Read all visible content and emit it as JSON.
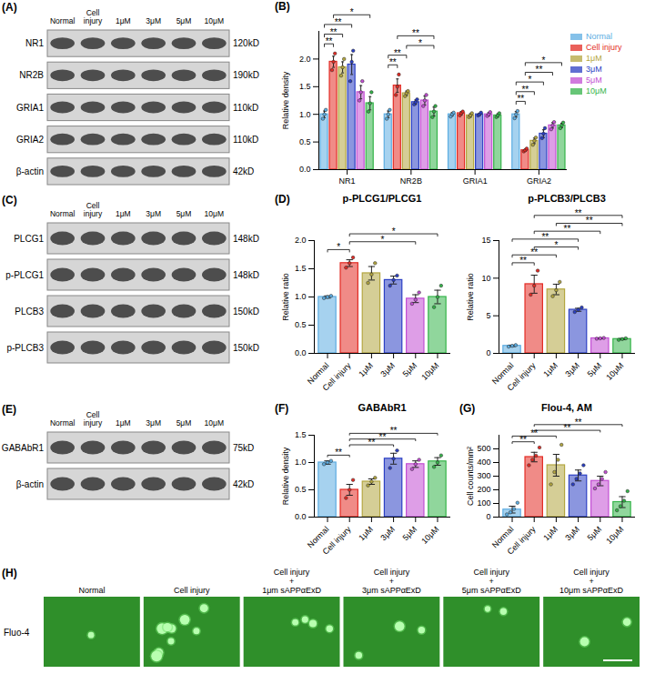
{
  "blots": [
    {
      "panel": "(A)",
      "lanes": [
        "Normal",
        "Cell injury",
        "1μM",
        "3μM",
        "5μM",
        "10μM"
      ],
      "rows": [
        {
          "name": "NR1",
          "size": "120kD"
        },
        {
          "name": "NR2B",
          "size": "190kD"
        },
        {
          "name": "GRIA1",
          "size": "110kD"
        },
        {
          "name": "GRIA2",
          "size": "110kD"
        },
        {
          "name": "β-actin",
          "size": "42kD"
        }
      ]
    },
    {
      "panel": "(C)",
      "lanes": [
        "Normal",
        "Cell injury",
        "1μM",
        "3μM",
        "5μM",
        "10μM"
      ],
      "rows": [
        {
          "name": "PLCG1",
          "size": "148kD"
        },
        {
          "name": "p-PLCG1",
          "size": "148kD"
        },
        {
          "name": "PLCB3",
          "size": "150kD"
        },
        {
          "name": "p-PLCB3",
          "size": "150kD"
        }
      ]
    },
    {
      "panel": "(E)",
      "lanes": [
        "Normal",
        "Cell injury",
        "1μM",
        "3μM",
        "5μM",
        "10μM"
      ],
      "rows": [
        {
          "name": "GABAbR1",
          "size": "75kD"
        },
        {
          "name": "β-actin",
          "size": "42kD"
        }
      ]
    }
  ],
  "chart_data": [
    {
      "type": "bar",
      "panel": "(B)",
      "ylabel": "Relative density",
      "categories": [
        "NR1",
        "NR2B",
        "GRIA1",
        "GRIA2"
      ],
      "series": [
        {
          "name": "Normal",
          "color": "#5dade2",
          "values": [
            1.0,
            1.0,
            1.0,
            1.0
          ],
          "errors": [
            0.06,
            0.06,
            0.03,
            0.05
          ],
          "points": [
            [
              0.92,
              1.0,
              1.08
            ],
            [
              0.92,
              1.0,
              1.08
            ],
            [
              0.96,
              1.0,
              1.03
            ],
            [
              0.93,
              1.0,
              1.06
            ]
          ]
        },
        {
          "name": "Cell injury",
          "color": "#e32b24",
          "values": [
            1.95,
            1.52,
            1.02,
            0.35
          ],
          "errors": [
            0.1,
            0.12,
            0.03,
            0.02
          ],
          "points": [
            [
              1.8,
              1.95,
              2.1
            ],
            [
              1.35,
              1.5,
              1.72
            ],
            [
              0.98,
              1.02,
              1.05
            ],
            [
              0.33,
              0.35,
              0.38
            ]
          ]
        },
        {
          "name": "1μM",
          "color": "#b3a640",
          "values": [
            1.85,
            1.38,
            0.98,
            0.52
          ],
          "errors": [
            0.1,
            0.04,
            0.03,
            0.05
          ],
          "points": [
            [
              1.7,
              1.85,
              2.0
            ],
            [
              1.33,
              1.38,
              1.42
            ],
            [
              0.95,
              0.98,
              1.02
            ],
            [
              0.45,
              0.52,
              0.58
            ]
          ]
        },
        {
          "name": "3μM",
          "color": "#2b3fc4",
          "values": [
            1.9,
            1.22,
            1.0,
            0.65
          ],
          "errors": [
            0.18,
            0.04,
            0.02,
            0.07
          ],
          "points": [
            [
              1.6,
              1.95,
              2.15
            ],
            [
              1.18,
              1.22,
              1.27
            ],
            [
              0.98,
              1.0,
              1.03
            ],
            [
              0.57,
              0.65,
              0.75
            ]
          ]
        },
        {
          "name": "5μM",
          "color": "#c24fd3",
          "values": [
            1.4,
            1.25,
            1.0,
            0.8
          ],
          "errors": [
            0.12,
            0.08,
            0.03,
            0.05
          ],
          "points": [
            [
              1.25,
              1.4,
              1.6
            ],
            [
              1.15,
              1.25,
              1.35
            ],
            [
              0.97,
              1.0,
              1.04
            ],
            [
              0.73,
              0.8,
              0.86
            ]
          ]
        },
        {
          "name": "10μM",
          "color": "#35b44a",
          "values": [
            1.2,
            1.05,
            0.98,
            0.8
          ],
          "errors": [
            0.12,
            0.08,
            0.03,
            0.04
          ],
          "points": [
            [
              1.05,
              1.2,
              1.4
            ],
            [
              0.95,
              1.05,
              1.15
            ],
            [
              0.95,
              0.98,
              1.02
            ],
            [
              0.75,
              0.8,
              0.85
            ]
          ]
        }
      ],
      "ylim": [
        0,
        2.5
      ],
      "yticks": [
        {
          "value": 0,
          "label": "0.0"
        },
        {
          "value": 0.5,
          "label": "0.5"
        },
        {
          "value": 1,
          "label": "1.0"
        },
        {
          "value": 1.5,
          "label": "1.5"
        },
        {
          "value": 2,
          "label": "2.0"
        }
      ],
      "legend": "right",
      "comparisons": [
        {
          "category": "NR1",
          "from": "Normal",
          "to": "Cell injury",
          "label": "**"
        },
        {
          "category": "NR1",
          "from": "Normal",
          "to": "1μM",
          "label": "**"
        },
        {
          "category": "NR1",
          "from": "Normal",
          "to": "3μM",
          "label": "**"
        },
        {
          "category": "NR1",
          "from": "Cell injury",
          "to": "10μM",
          "label": "*"
        },
        {
          "category": "NR2B",
          "from": "Normal",
          "to": "Cell injury",
          "label": "**"
        },
        {
          "category": "NR2B",
          "from": "Normal",
          "to": "1μM",
          "label": "**"
        },
        {
          "category": "NR2B",
          "from": "Cell injury",
          "to": "10μM",
          "label": "**"
        },
        {
          "category": "NR2B",
          "from": "1μM",
          "to": "10μM",
          "label": "*"
        },
        {
          "category": "GRIA2",
          "from": "Normal",
          "to": "Cell injury",
          "label": "**"
        },
        {
          "category": "GRIA2",
          "from": "Normal",
          "to": "1μM",
          "label": "**"
        },
        {
          "category": "GRIA2",
          "from": "Normal",
          "to": "3μM",
          "label": "*"
        },
        {
          "category": "GRIA2",
          "from": "Cell injury",
          "to": "5μM",
          "label": "**"
        },
        {
          "category": "GRIA2",
          "from": "Cell injury",
          "to": "10μM",
          "label": "*"
        }
      ]
    },
    {
      "type": "bar",
      "panel": "(D)",
      "title": "p-PLCG1/PLCG1",
      "ylabel": "Relative ratio",
      "categories": [
        "Normal",
        "Cell injury",
        "1μM",
        "3μM",
        "5μM",
        "10μM"
      ],
      "values": [
        1.0,
        1.6,
        1.42,
        1.3,
        0.97,
        1.0
      ],
      "errors": [
        0.02,
        0.06,
        0.12,
        0.07,
        0.07,
        0.12
      ],
      "points": [
        [
          0.98,
          1.0,
          1.02
        ],
        [
          1.52,
          1.6,
          1.7
        ],
        [
          1.25,
          1.4,
          1.6
        ],
        [
          1.2,
          1.3,
          1.38
        ],
        [
          0.88,
          0.95,
          1.08
        ],
        [
          0.82,
          1.0,
          1.2
        ]
      ],
      "colors": [
        "#5dade2",
        "#e32b24",
        "#b3a640",
        "#2b3fc4",
        "#c24fd3",
        "#35b44a"
      ],
      "ylim": [
        0,
        2
      ],
      "yticks": [
        {
          "value": 0,
          "label": "0.0"
        },
        {
          "value": 0.5,
          "label": "0.5"
        },
        {
          "value": 1,
          "label": "1.0"
        },
        {
          "value": 1.5,
          "label": "1.5"
        },
        {
          "value": 2,
          "label": "2.0"
        }
      ],
      "comparisons": [
        {
          "from": "Normal",
          "to": "Cell injury",
          "label": "*"
        },
        {
          "from": "Cell injury",
          "to": "5μM",
          "label": "*"
        },
        {
          "from": "Cell injury",
          "to": "10μM",
          "label": "*"
        }
      ]
    },
    {
      "type": "bar",
      "title": "p-PLCB3/PLCB3",
      "ylabel": "Relative ratio",
      "categories": [
        "Normal",
        "Cell injury",
        "1μM",
        "3μM",
        "5μM",
        "10μM"
      ],
      "values": [
        1.0,
        9.2,
        8.5,
        5.8,
        2.0,
        1.9
      ],
      "errors": [
        0.1,
        1.2,
        0.7,
        0.2,
        0.05,
        0.08
      ],
      "points": [
        [
          0.9,
          1.0,
          1.1
        ],
        [
          7.8,
          9.0,
          11.0
        ],
        [
          7.6,
          8.4,
          9.5
        ],
        [
          5.5,
          5.8,
          6.1
        ],
        [
          1.95,
          2.0,
          2.05
        ],
        [
          1.8,
          1.9,
          2.0
        ]
      ],
      "colors": [
        "#5dade2",
        "#e32b24",
        "#b3a640",
        "#2b3fc4",
        "#c24fd3",
        "#35b44a"
      ],
      "ylim": [
        0,
        15
      ],
      "yticks": [
        0,
        5,
        10,
        15
      ],
      "comparisons": [
        {
          "from": "Normal",
          "to": "Cell injury",
          "label": "**"
        },
        {
          "from": "Normal",
          "to": "1μM",
          "label": "**"
        },
        {
          "from": "Normal",
          "to": "3μM",
          "label": "**"
        },
        {
          "from": "Cell injury",
          "to": "3μM",
          "label": "*"
        },
        {
          "from": "Cell injury",
          "to": "5μM",
          "label": "**"
        },
        {
          "from": "Cell injury",
          "to": "10μM",
          "label": "**"
        },
        {
          "from": "1μM",
          "to": "10μM",
          "label": "**"
        }
      ]
    },
    {
      "type": "bar",
      "panel": "(F)",
      "title": "GABAbR1",
      "ylabel": "Relative density",
      "categories": [
        "Normal",
        "Cell injury",
        "1μM",
        "3μM",
        "5μM",
        "10μM"
      ],
      "values": [
        1.0,
        0.5,
        0.65,
        1.07,
        0.97,
        1.02
      ],
      "errors": [
        0.03,
        0.1,
        0.05,
        0.1,
        0.06,
        0.07
      ],
      "points": [
        [
          0.97,
          1.0,
          1.03
        ],
        [
          0.35,
          0.5,
          0.68
        ],
        [
          0.58,
          0.65,
          0.72
        ],
        [
          0.9,
          1.07,
          1.22
        ],
        [
          0.88,
          0.97,
          1.05
        ],
        [
          0.92,
          1.0,
          1.13
        ]
      ],
      "colors": [
        "#5dade2",
        "#e32b24",
        "#b3a640",
        "#2b3fc4",
        "#c24fd3",
        "#35b44a"
      ],
      "ylim": [
        0,
        1.5
      ],
      "yticks": [
        {
          "value": 0,
          "label": "0.0"
        },
        {
          "value": 0.5,
          "label": "0.5"
        },
        {
          "value": 1,
          "label": "1.0"
        },
        {
          "value": 1.5,
          "label": "1.5"
        }
      ],
      "comparisons": [
        {
          "from": "Normal",
          "to": "Cell injury",
          "label": "**"
        },
        {
          "from": "Cell injury",
          "to": "3μM",
          "label": "**"
        },
        {
          "from": "Cell injury",
          "to": "5μM",
          "label": "**"
        },
        {
          "from": "Cell injury",
          "to": "10μM",
          "label": "**"
        }
      ]
    },
    {
      "type": "bar",
      "panel": "(G)",
      "title": "Flou-4, AM",
      "ylabel": "Cell counts/mm²",
      "categories": [
        "Normal",
        "Cell injury",
        "1μM",
        "3μM",
        "5μM",
        "10μM"
      ],
      "values": [
        55,
        440,
        380,
        305,
        265,
        110
      ],
      "errors": [
        25,
        35,
        80,
        40,
        35,
        40
      ],
      "points": [
        [
          20,
          35,
          60,
          105
        ],
        [
          380,
          420,
          450,
          510
        ],
        [
          240,
          330,
          420,
          530
        ],
        [
          240,
          280,
          320,
          380
        ],
        [
          210,
          240,
          280,
          330
        ],
        [
          50,
          80,
          120,
          190
        ]
      ],
      "colors": [
        "#5dade2",
        "#e32b24",
        "#b3a640",
        "#2b3fc4",
        "#c24fd3",
        "#35b44a"
      ],
      "ylim": [
        0,
        600
      ],
      "yticks": [
        0,
        100,
        200,
        300,
        400,
        500
      ],
      "comparisons": [
        {
          "from": "Normal",
          "to": "Cell injury",
          "label": "**"
        },
        {
          "from": "Normal",
          "to": "1μM",
          "label": "**"
        },
        {
          "from": "Cell injury",
          "to": "5μM",
          "label": "**"
        },
        {
          "from": "Cell injury",
          "to": "10μM",
          "label": "**"
        }
      ]
    }
  ],
  "images": {
    "panel": "(H)",
    "row_label": "Fluo-4",
    "columns": [
      "Normal",
      "Cell injury",
      "Cell injury + 1μm sAPPαExD",
      "Cell injury + 3μm sAPPαExD",
      "Cell injury + 5μm sAPPαExD",
      "Cell injury + 10μm sAPPαExD"
    ]
  }
}
